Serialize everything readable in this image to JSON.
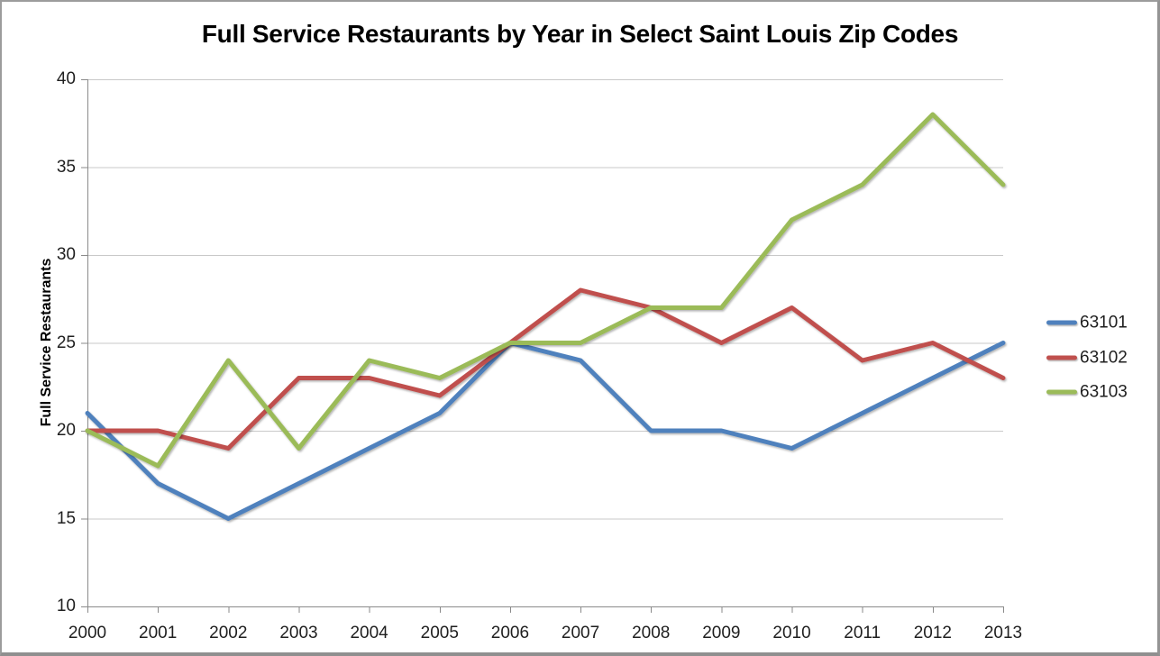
{
  "chart_data": {
    "type": "line",
    "title": "Full Service Restaurants by Year in Select Saint Louis Zip Codes",
    "xlabel": "",
    "ylabel": "Full Service Restaurants",
    "categories": [
      "2000",
      "2001",
      "2002",
      "2003",
      "2004",
      "2005",
      "2006",
      "2007",
      "2008",
      "2009",
      "2010",
      "2011",
      "2012",
      "2013"
    ],
    "yticks": [
      10,
      15,
      20,
      25,
      30,
      35,
      40
    ],
    "ylim": [
      10,
      40
    ],
    "grid": true,
    "legend_position": "right",
    "series": [
      {
        "name": "63101",
        "color": "#4F81BD",
        "values": [
          21,
          17,
          15,
          17,
          19,
          21,
          25,
          24,
          20,
          20,
          19,
          21,
          23,
          25
        ]
      },
      {
        "name": "63102",
        "color": "#C0504D",
        "values": [
          20,
          20,
          19,
          23,
          23,
          22,
          25,
          28,
          27,
          25,
          27,
          24,
          25,
          23
        ]
      },
      {
        "name": "63103",
        "color": "#9BBB59",
        "values": [
          20,
          18,
          24,
          19,
          24,
          23,
          25,
          25,
          27,
          27,
          32,
          34,
          38,
          34
        ]
      }
    ]
  },
  "colors": {
    "grid_line": "#C9C9C9",
    "axis_line": "#8A8A8A",
    "tick_mark": "#8A8A8A",
    "title_text": "#000000",
    "tick_text": "#1F1F1F"
  }
}
